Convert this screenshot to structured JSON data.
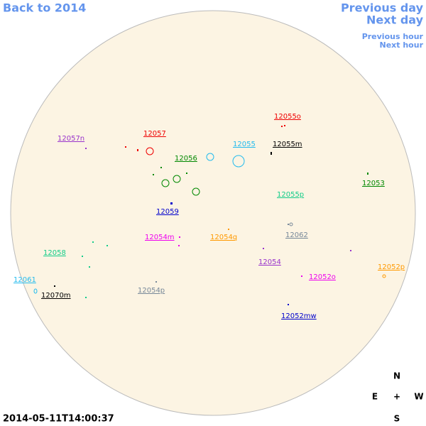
{
  "navigation": {
    "back": "Back to 2014",
    "previous_day": "Previous day",
    "next_day": "Next day",
    "previous_hour": "Previous hour",
    "next_hour": "Next hour"
  },
  "regions": [
    "12055o",
    "12057",
    "12057n",
    "12055",
    "12055m",
    "12056",
    "12053",
    "12055p",
    "12059",
    "12054m",
    "12054q",
    "12062",
    "12058",
    "12054",
    "12052p",
    "12052o",
    "12061",
    "12070m",
    "12054p",
    "12052mw"
  ],
  "timestamp": "2014-05-11T14:00:37",
  "compass": {
    "north": "N",
    "east": "E",
    "center": "+",
    "west": "W",
    "south": "S"
  }
}
